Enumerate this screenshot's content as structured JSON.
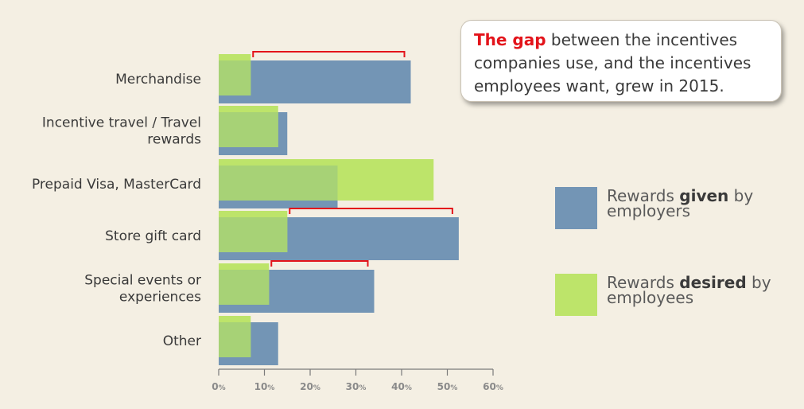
{
  "callout": {
    "highlight": "The gap",
    "text": " between the incentives companies use, and the incentives employees want, grew in 2015."
  },
  "legend": [
    {
      "before": "Rewards ",
      "bold": "given",
      "after": " by employers",
      "color": "#7395b5"
    },
    {
      "before": "Rewards ",
      "bold": "desired",
      "after": " by employees",
      "color": "#bde46a"
    }
  ],
  "colors": {
    "given": "#7395b5",
    "desired": "#bde46a",
    "overlap": "#a7d276",
    "bracket": "#e3141b",
    "axis": "#7a7a7a"
  },
  "chart_data": {
    "type": "bar",
    "orientation": "horizontal",
    "categories": [
      [
        "Merchandise"
      ],
      [
        "Incentive travel / Travel",
        "rewards"
      ],
      [
        "Prepaid Visa, MasterCard"
      ],
      [
        "Store gift card"
      ],
      [
        "Special events or",
        "experiences"
      ],
      [
        "Other"
      ]
    ],
    "series": [
      {
        "name": "Rewards given by employers",
        "values": [
          42,
          15,
          26,
          52.5,
          34,
          13
        ]
      },
      {
        "name": "Rewards desired by employees",
        "values": [
          7,
          13,
          47,
          15,
          11,
          7
        ]
      }
    ],
    "xlim": [
      0,
      60
    ],
    "xticks": [
      0,
      10,
      20,
      30,
      40,
      50,
      60
    ],
    "tick_unit": "%",
    "gap_brackets": [
      "Merchandise",
      "Store gift card",
      "Special events or experiences"
    ]
  }
}
